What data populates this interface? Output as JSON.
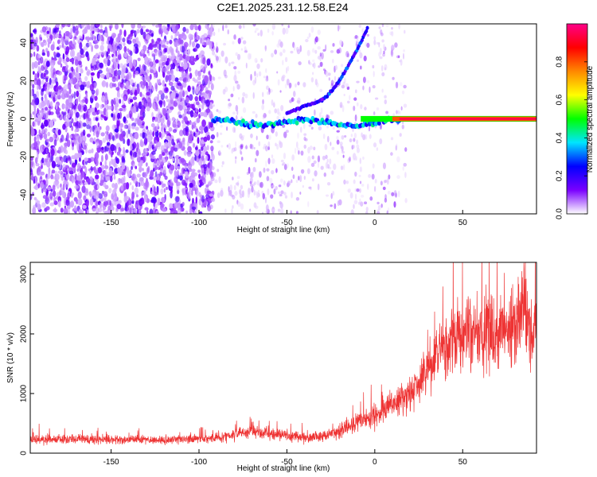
{
  "chart_data": [
    {
      "type": "heatmap",
      "title": "C2E1.2025.231.12.58.E24",
      "xlabel": "Height of straight line (km)",
      "ylabel": "Frequency (Hz)",
      "xlim": [
        -196,
        92
      ],
      "ylim": [
        -50,
        50
      ],
      "x_ticks": [
        -150,
        -100,
        -50,
        0,
        50
      ],
      "y_ticks": [
        -40,
        -20,
        0,
        20,
        40
      ],
      "colorbar": {
        "label": "Normalized spectral amplitude",
        "range": [
          0,
          1
        ],
        "ticks": [
          0.0,
          0.2,
          0.4,
          0.6,
          0.8
        ],
        "colors": [
          "#ffffff",
          "#7a00ff",
          "#0000ff",
          "#00e5ff",
          "#00ff00",
          "#ffff00",
          "#ff8800",
          "#ff0000",
          "#ff0088"
        ]
      },
      "features": [
        {
          "name": "",
          "x_range": [
            -92,
            92
          ],
          "frequency_hz": 0,
          "note": "strong carrier line near 0 Hz"
        },
        {
          "name": "",
          "x_range": [
            -30,
            -4
          ],
          "frequency_hz_range": [
            10,
            48
          ],
          "note": "curved trace rising from about 0 Hz to 48 Hz"
        }
      ]
    },
    {
      "type": "line",
      "title": "",
      "xlabel": "Height of straight line (km)",
      "ylabel": "SNR (10 * v/v)",
      "xlim": [
        -196,
        92
      ],
      "ylim": [
        0,
        3200
      ],
      "x_ticks": [
        -150,
        -100,
        -50,
        0,
        50
      ],
      "y_ticks": [
        0,
        1000,
        2000,
        3000
      ],
      "color": "#ee3333",
      "series": [
        {
          "name": "",
          "x": [
            -196,
            -180,
            -160,
            -140,
            -120,
            -100,
            -90,
            -80,
            -70,
            -60,
            -50,
            -40,
            -30,
            -20,
            -10,
            0,
            10,
            20,
            30,
            40,
            50,
            60,
            70,
            80,
            85,
            90,
            92
          ],
          "y": [
            220,
            240,
            230,
            220,
            220,
            240,
            250,
            320,
            380,
            330,
            300,
            260,
            280,
            380,
            500,
            650,
            800,
            1000,
            1350,
            1800,
            1950,
            2000,
            2050,
            2100,
            2400,
            1700,
            2000
          ]
        }
      ]
    }
  ]
}
